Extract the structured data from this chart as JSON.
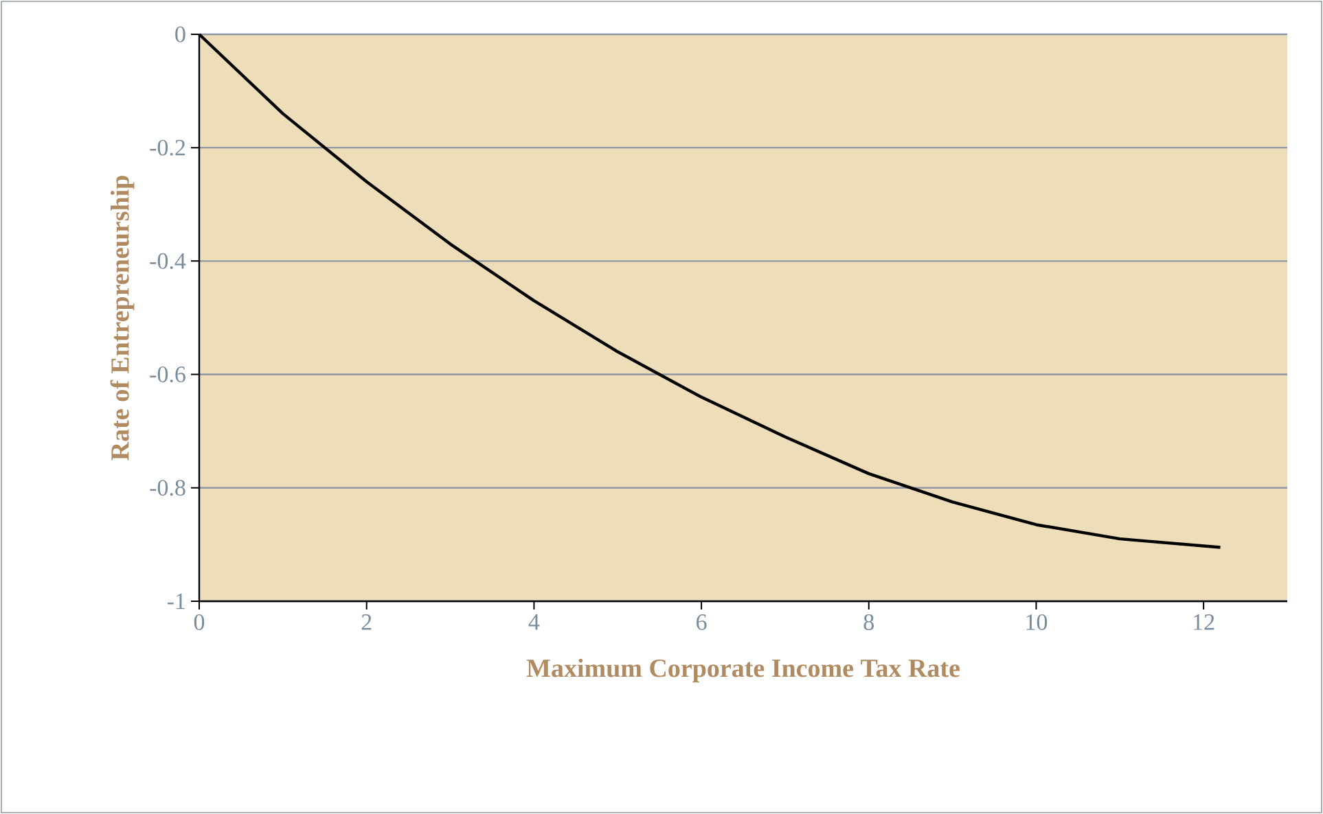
{
  "chart_data": {
    "type": "line",
    "xlabel": "Maximum Corporate Income Tax Rate",
    "ylabel": "Rate of Entrepreneurship",
    "x": [
      0,
      1,
      2,
      3,
      4,
      5,
      6,
      7,
      8,
      9,
      10,
      11,
      12.2
    ],
    "series": [
      {
        "color": "#000000",
        "values": [
          0,
          -0.14,
          -0.26,
          -0.37,
          -0.47,
          -0.56,
          -0.64,
          -0.71,
          -0.775,
          -0.825,
          -0.865,
          -0.89,
          -0.905
        ]
      }
    ],
    "xlim": [
      0,
      13
    ],
    "ylim": [
      -1,
      0
    ],
    "xticks": [
      0,
      2,
      4,
      6,
      8,
      10,
      12
    ],
    "yticks": [
      -1,
      -0.8,
      -0.6,
      -0.4,
      -0.2,
      0
    ],
    "grid": "y",
    "marker": "none",
    "line_style": "solid"
  }
}
